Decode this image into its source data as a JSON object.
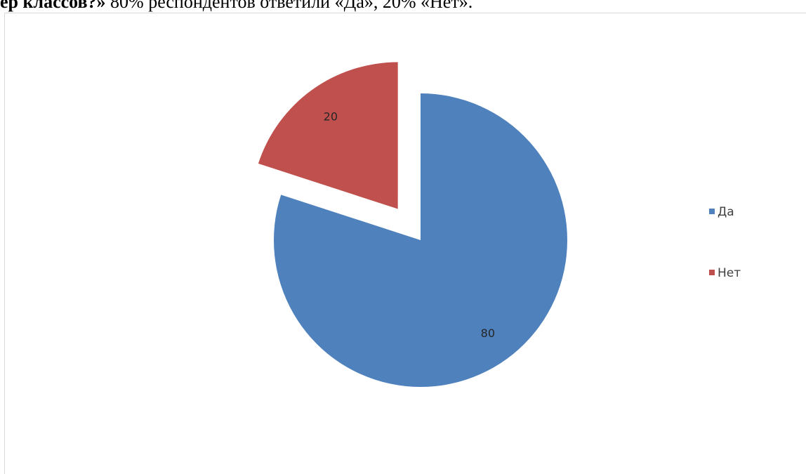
{
  "caption": {
    "bold": "ер классов?»",
    "text": " 80% респондентов ответили «Да», 20% «Нет»."
  },
  "chart_data": {
    "type": "pie",
    "categories": [
      "Да",
      "Нет"
    ],
    "values": [
      80,
      20
    ],
    "colors": [
      "#4F81BD",
      "#C0504D"
    ],
    "exploded": [
      false,
      true
    ],
    "data_labels": [
      "80",
      "20"
    ],
    "legend_position": "right"
  }
}
